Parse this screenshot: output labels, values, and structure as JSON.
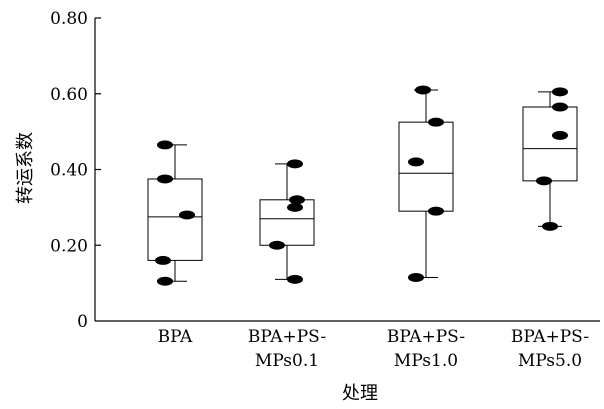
{
  "chart_data": {
    "type": "box",
    "xlabel": "处理",
    "ylabel": "转运系数",
    "ylim": [
      0,
      0.8
    ],
    "yticks": [
      "0",
      "0.20",
      "0.40",
      "0.60",
      "0.80"
    ],
    "categories": [
      [
        "BPA"
      ],
      [
        "BPA+PS-",
        "MPs0.1"
      ],
      [
        "BPA+PS-",
        "MPs1.0"
      ],
      [
        "BPA+PS-",
        "MPs5.0"
      ]
    ],
    "boxes": [
      {
        "min": 0.105,
        "q1": 0.16,
        "median": 0.275,
        "q3": 0.375,
        "max": 0.465,
        "points": [
          0.465,
          0.375,
          0.28,
          0.16,
          0.105
        ]
      },
      {
        "min": 0.11,
        "q1": 0.2,
        "median": 0.27,
        "q3": 0.32,
        "max": 0.415,
        "points": [
          0.415,
          0.32,
          0.3,
          0.2,
          0.11
        ]
      },
      {
        "min": 0.115,
        "q1": 0.29,
        "median": 0.39,
        "q3": 0.525,
        "max": 0.61,
        "points": [
          0.61,
          0.525,
          0.42,
          0.29,
          0.115
        ]
      },
      {
        "min": 0.25,
        "q1": 0.37,
        "median": 0.455,
        "q3": 0.565,
        "max": 0.605,
        "points": [
          0.605,
          0.565,
          0.49,
          0.37,
          0.25
        ]
      }
    ],
    "point_offsets": [
      [
        -0.5,
        -0.5,
        0.6,
        -0.6,
        -0.5
      ],
      [
        0.4,
        0.5,
        0.4,
        -0.5,
        0.4
      ],
      [
        -0.15,
        0.5,
        -0.5,
        0.5,
        -0.5
      ],
      [
        0.5,
        0.5,
        0.5,
        -0.3,
        0.0
      ]
    ],
    "grid": false,
    "legend": "none"
  }
}
